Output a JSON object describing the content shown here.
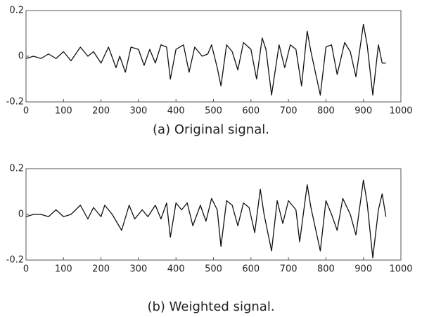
{
  "chart_data": [
    {
      "type": "line",
      "title": "(a) Original signal.",
      "x": [
        0,
        20,
        40,
        60,
        80,
        100,
        120,
        145,
        165,
        180,
        200,
        220,
        240,
        250,
        265,
        280,
        300,
        315,
        330,
        345,
        360,
        375,
        385,
        400,
        420,
        435,
        450,
        470,
        485,
        495,
        510,
        520,
        535,
        550,
        565,
        580,
        600,
        615,
        630,
        640,
        655,
        675,
        690,
        705,
        720,
        735,
        750,
        760,
        785,
        800,
        815,
        830,
        850,
        865,
        880,
        900,
        910,
        925,
        940,
        950,
        960
      ],
      "series": [
        {
          "color": "#111111",
          "values": [
            -0.01,
            0.0,
            -0.01,
            0.01,
            -0.01,
            0.02,
            -0.02,
            0.04,
            0.0,
            0.02,
            -0.03,
            0.04,
            -0.05,
            0.0,
            -0.07,
            0.04,
            0.03,
            -0.04,
            0.03,
            -0.03,
            0.05,
            0.04,
            -0.1,
            0.03,
            0.05,
            -0.07,
            0.04,
            0.0,
            0.01,
            0.05,
            -0.05,
            -0.13,
            0.05,
            0.02,
            -0.06,
            0.06,
            0.03,
            -0.1,
            0.08,
            0.03,
            -0.17,
            0.05,
            -0.05,
            0.05,
            0.03,
            -0.13,
            0.11,
            0.02,
            -0.17,
            0.04,
            0.05,
            -0.08,
            0.06,
            0.02,
            -0.09,
            0.14,
            0.05,
            -0.17,
            0.05,
            -0.03,
            -0.03
          ]
        }
      ],
      "xlim": [
        0,
        1000
      ],
      "xticks": [
        0,
        100,
        200,
        300,
        400,
        500,
        600,
        700,
        800,
        900,
        1000
      ],
      "ylim": [
        -0.2,
        0.2
      ],
      "yticks": [
        -0.2,
        0,
        0.2
      ]
    },
    {
      "type": "line",
      "title": "(b) Weighted signal.",
      "x": [
        0,
        20,
        40,
        60,
        80,
        100,
        120,
        145,
        165,
        180,
        200,
        210,
        230,
        255,
        275,
        290,
        310,
        325,
        345,
        360,
        375,
        385,
        400,
        415,
        430,
        445,
        465,
        480,
        495,
        510,
        520,
        535,
        550,
        565,
        580,
        595,
        610,
        625,
        635,
        655,
        670,
        685,
        700,
        720,
        730,
        750,
        760,
        785,
        800,
        815,
        830,
        845,
        865,
        880,
        900,
        910,
        925,
        940,
        950,
        960
      ],
      "series": [
        {
          "color": "#111111",
          "values": [
            -0.01,
            0.0,
            0.0,
            -0.01,
            0.02,
            -0.01,
            0.0,
            0.04,
            -0.02,
            0.03,
            -0.01,
            0.04,
            0.0,
            -0.07,
            0.04,
            -0.02,
            0.02,
            -0.01,
            0.04,
            -0.02,
            0.05,
            -0.1,
            0.05,
            0.02,
            0.05,
            -0.05,
            0.04,
            -0.03,
            0.07,
            0.02,
            -0.14,
            0.06,
            0.04,
            -0.05,
            0.05,
            0.03,
            -0.08,
            0.11,
            0.0,
            -0.16,
            0.06,
            -0.04,
            0.06,
            0.02,
            -0.12,
            0.13,
            0.03,
            -0.16,
            0.06,
            0.0,
            -0.07,
            0.07,
            0.0,
            -0.09,
            0.15,
            0.05,
            -0.19,
            0.02,
            0.09,
            -0.01
          ]
        }
      ],
      "xlim": [
        0,
        1000
      ],
      "xticks": [
        0,
        100,
        200,
        300,
        400,
        500,
        600,
        700,
        800,
        900,
        1000
      ],
      "ylim": [
        -0.2,
        0.2
      ],
      "yticks": [
        -0.2,
        0,
        0.2
      ]
    }
  ]
}
